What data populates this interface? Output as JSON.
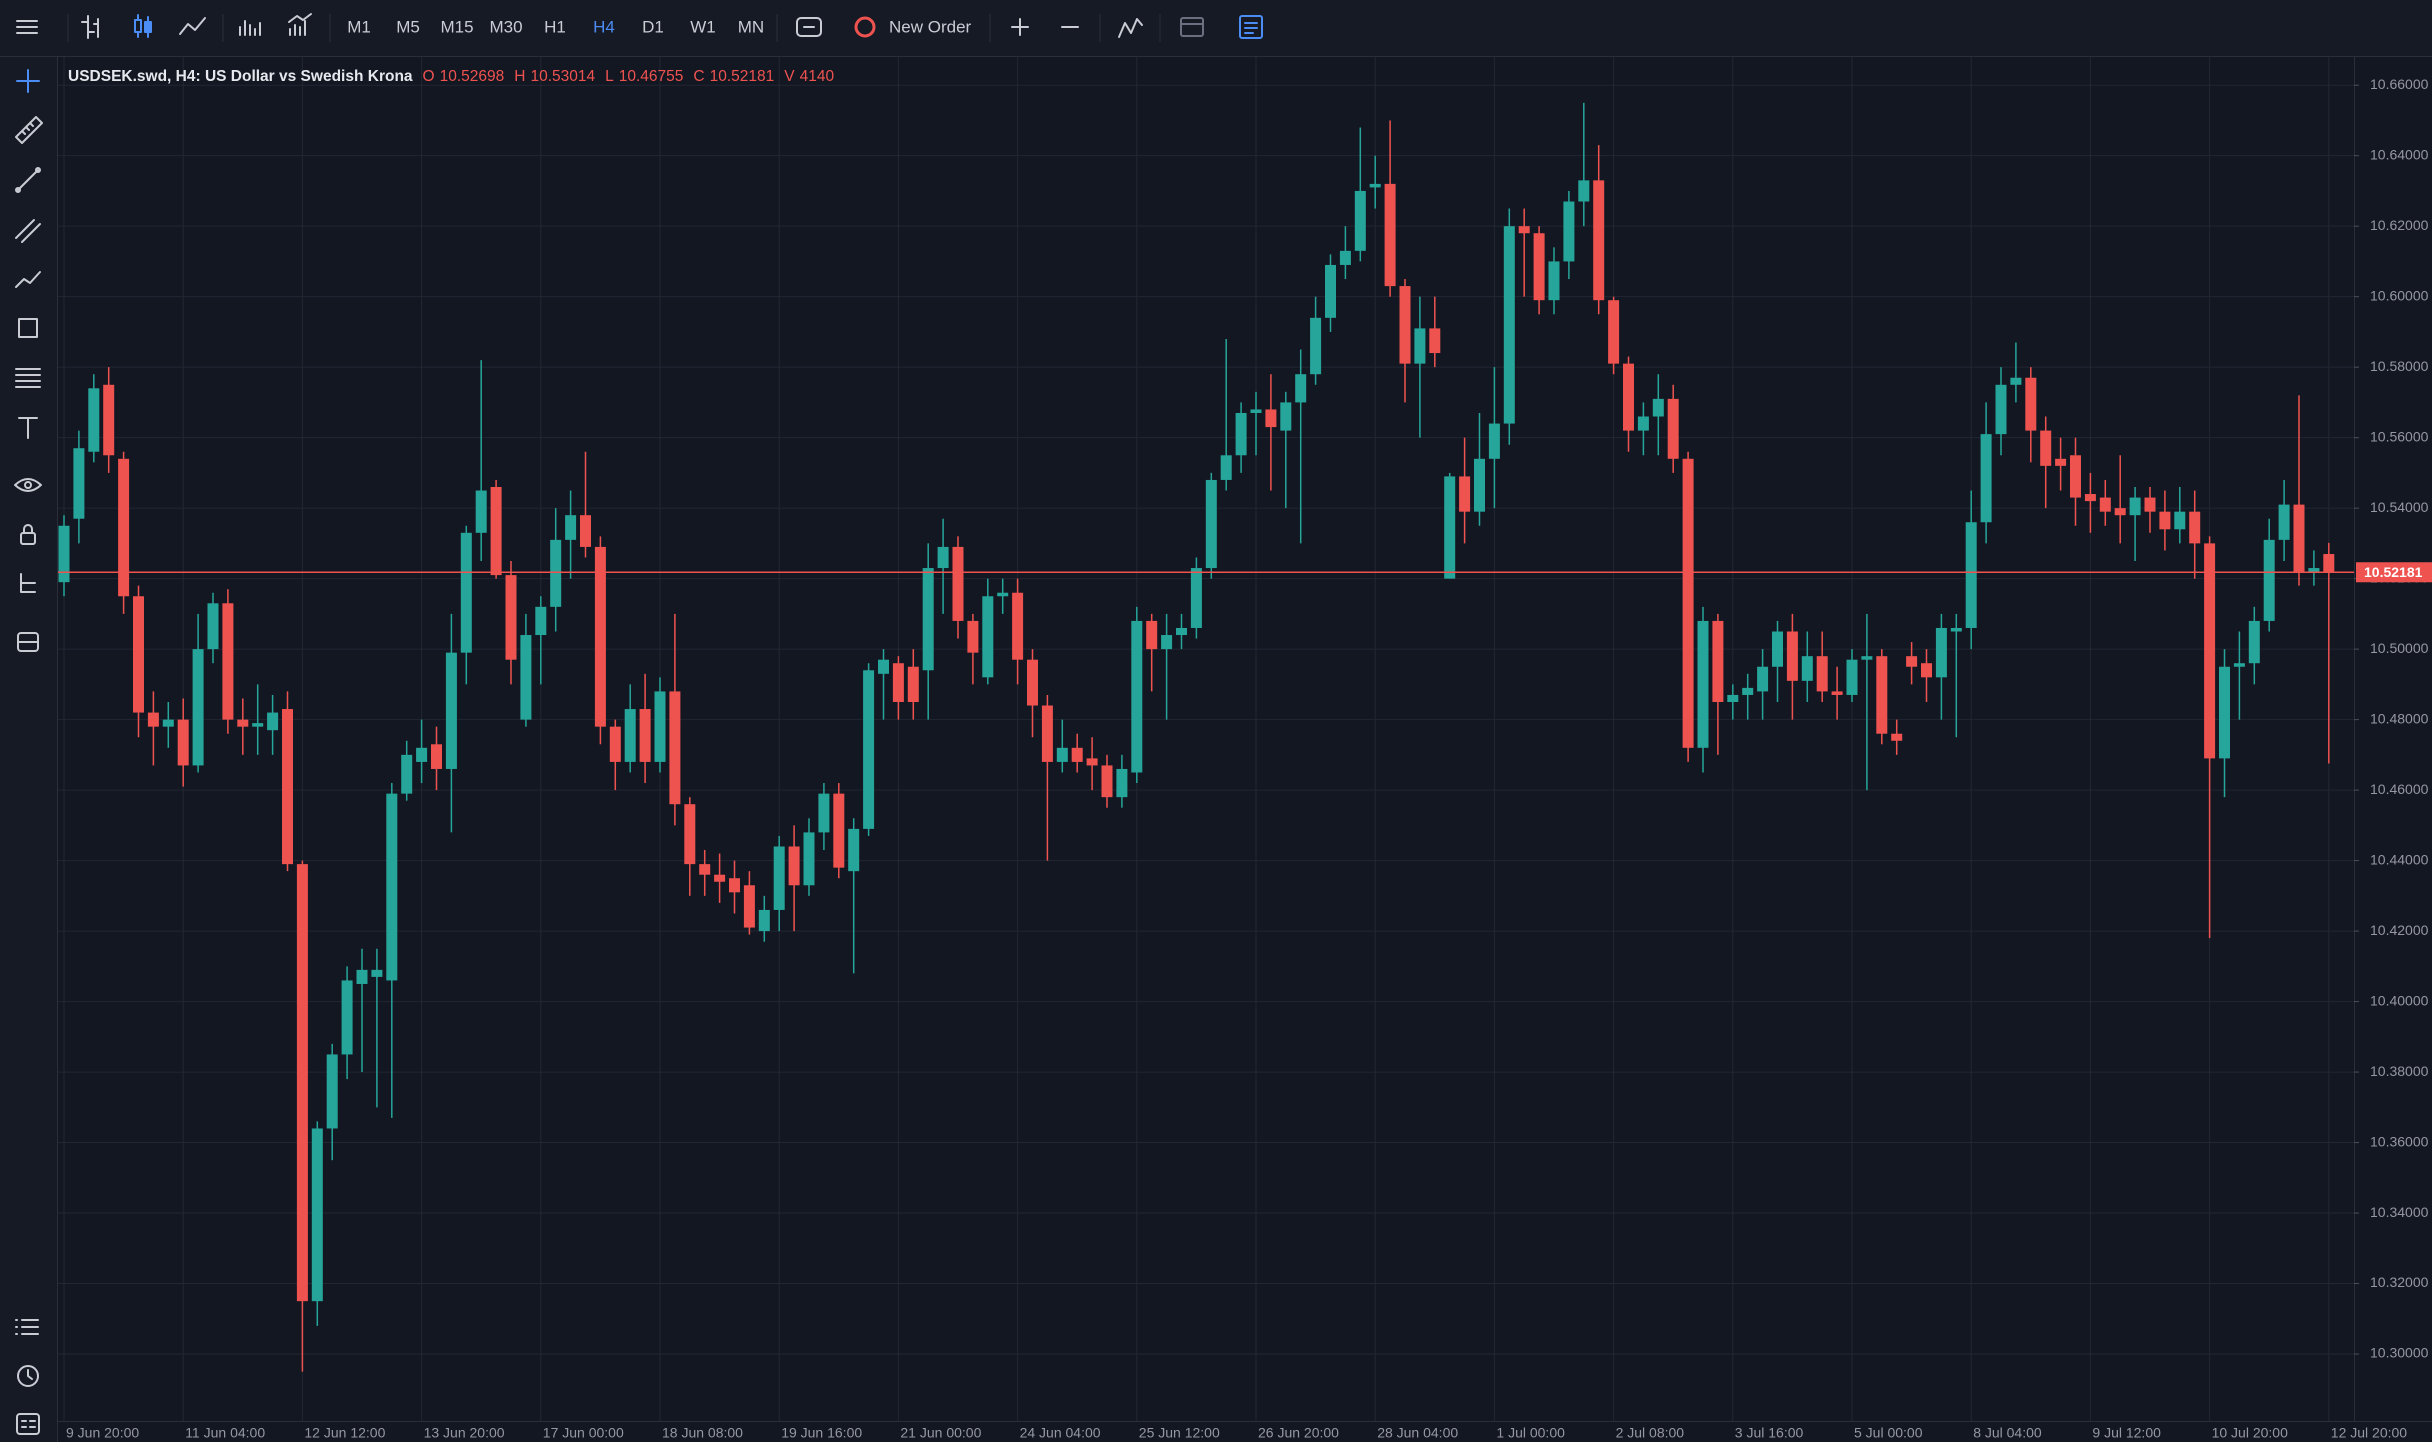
{
  "toolbar": {
    "timeframes": [
      "M1",
      "M5",
      "M15",
      "M30",
      "H1",
      "H4",
      "D1",
      "W1",
      "MN"
    ],
    "active_timeframe": "H4",
    "new_order": "New Order"
  },
  "chart_data": {
    "type": "candlestick",
    "title": "USDSEK.swd, H4: US Dollar vs Swedish Krona",
    "legend": [
      {
        "label": "O",
        "value": 10.52698
      },
      {
        "label": "H",
        "value": 10.53014
      },
      {
        "label": "L",
        "value": 10.46755
      },
      {
        "label": "C",
        "value": 10.52181
      },
      {
        "label": "V",
        "value": 4140
      }
    ],
    "last_price": 10.52181,
    "up_color": "#26a69a",
    "down_color": "#ef5350",
    "grid": true,
    "ylim": [
      10.281,
      10.668
    ],
    "yticks": [
      {
        "value": 10.3,
        "label": "10.30000"
      },
      {
        "value": 10.32,
        "label": "10.32000"
      },
      {
        "value": 10.34,
        "label": "10.34000"
      },
      {
        "value": 10.36,
        "label": "10.36000"
      },
      {
        "value": 10.38,
        "label": "10.38000"
      },
      {
        "value": 10.4,
        "label": "10.40000"
      },
      {
        "value": 10.42,
        "label": "10.42000"
      },
      {
        "value": 10.44,
        "label": "10.44000"
      },
      {
        "value": 10.46,
        "label": "10.46000"
      },
      {
        "value": 10.48,
        "label": "10.48000"
      },
      {
        "value": 10.5,
        "label": "10.50000"
      },
      {
        "value": 10.52,
        "label": "10.52000"
      },
      {
        "value": 10.54,
        "label": "10.54000"
      },
      {
        "value": 10.56,
        "label": "10.56000"
      },
      {
        "value": 10.58,
        "label": "10.58000"
      },
      {
        "value": 10.6,
        "label": "10.60000"
      },
      {
        "value": 10.62,
        "label": "10.62000"
      },
      {
        "value": 10.64,
        "label": "10.64000"
      },
      {
        "value": 10.66,
        "label": "10.66000"
      }
    ],
    "categories": [
      "9 Jun 20:00",
      null,
      null,
      null,
      null,
      null,
      null,
      null,
      "11 Jun 04:00",
      null,
      null,
      null,
      null,
      null,
      null,
      null,
      "12 Jun 12:00",
      null,
      null,
      null,
      null,
      null,
      null,
      null,
      "13 Jun 20:00",
      null,
      null,
      null,
      null,
      null,
      null,
      null,
      "17 Jun 00:00",
      null,
      null,
      null,
      null,
      null,
      null,
      null,
      "18 Jun 08:00",
      null,
      null,
      null,
      null,
      null,
      null,
      null,
      "19 Jun 16:00",
      null,
      null,
      null,
      null,
      null,
      null,
      null,
      "21 Jun 00:00",
      null,
      null,
      null,
      null,
      null,
      null,
      null,
      "24 Jun 04:00",
      null,
      null,
      null,
      null,
      null,
      null,
      null,
      "25 Jun 12:00",
      null,
      null,
      null,
      null,
      null,
      null,
      null,
      "26 Jun 20:00",
      null,
      null,
      null,
      null,
      null,
      null,
      null,
      "28 Jun 04:00",
      null,
      null,
      null,
      null,
      null,
      null,
      null,
      "1 Jul 00:00",
      null,
      null,
      null,
      null,
      null,
      null,
      null,
      "2 Jul 08:00",
      null,
      null,
      null,
      null,
      null,
      null,
      null,
      "3 Jul 16:00",
      null,
      null,
      null,
      null,
      null,
      null,
      null,
      "5 Jul 00:00",
      null,
      null,
      null,
      null,
      null,
      null,
      null,
      "8 Jul 04:00",
      null,
      null,
      null,
      null,
      null,
      null,
      null,
      "9 Jul 12:00",
      null,
      null,
      null,
      null,
      null,
      null,
      null,
      "10 Jul 20:00",
      null,
      null,
      null,
      null,
      null,
      null,
      null,
      "12 Jul 20:00"
    ],
    "open": [
      10.519,
      10.537,
      10.556,
      10.575,
      10.554,
      10.515,
      10.482,
      10.478,
      10.48,
      10.467,
      10.5,
      10.513,
      10.48,
      10.478,
      10.477,
      10.483,
      10.439,
      10.315,
      10.364,
      10.385,
      10.405,
      10.407,
      10.406,
      10.459,
      10.468,
      10.473,
      10.466,
      10.499,
      10.533,
      10.546,
      10.521,
      10.48,
      10.504,
      10.512,
      10.531,
      10.538,
      10.529,
      10.478,
      10.468,
      10.483,
      10.468,
      10.488,
      10.456,
      10.439,
      10.436,
      10.435,
      10.433,
      10.42,
      10.426,
      10.444,
      10.433,
      10.448,
      10.459,
      10.437,
      10.449,
      10.493,
      10.496,
      10.495,
      10.494,
      10.523,
      10.529,
      10.508,
      10.492,
      10.515,
      10.516,
      10.497,
      10.484,
      10.468,
      10.472,
      10.469,
      10.467,
      10.458,
      10.465,
      10.508,
      10.5,
      10.504,
      10.506,
      10.523,
      10.548,
      10.555,
      10.567,
      10.568,
      10.562,
      10.57,
      10.578,
      10.594,
      10.609,
      10.613,
      10.631,
      10.632,
      10.603,
      10.581,
      10.591,
      10.52,
      10.549,
      10.539,
      10.554,
      10.564,
      10.62,
      10.618,
      10.599,
      10.61,
      10.627,
      10.633,
      10.599,
      10.581,
      10.562,
      10.566,
      10.571,
      10.554,
      10.472,
      10.508,
      10.485,
      10.487,
      10.488,
      10.495,
      10.505,
      10.491,
      10.498,
      10.488,
      10.487,
      10.497,
      10.498,
      10.476,
      10.498,
      10.496,
      10.492,
      10.505,
      10.506,
      10.536,
      10.561,
      10.575,
      10.577,
      10.562,
      10.554,
      10.555,
      10.544,
      10.543,
      10.54,
      10.538,
      10.543,
      10.539,
      10.534,
      10.539,
      10.53,
      10.469,
      10.495,
      10.496,
      10.508,
      10.531,
      10.541,
      10.522,
      10.52698
    ],
    "high": [
      10.538,
      10.562,
      10.578,
      10.58,
      10.556,
      10.518,
      10.488,
      10.485,
      10.486,
      10.51,
      10.516,
      10.517,
      10.486,
      10.49,
      10.487,
      10.488,
      10.44,
      10.366,
      10.388,
      10.41,
      10.415,
      10.415,
      10.462,
      10.474,
      10.48,
      10.478,
      10.51,
      10.535,
      10.582,
      10.548,
      10.525,
      10.51,
      10.515,
      10.54,
      10.545,
      10.556,
      10.532,
      10.48,
      10.49,
      10.493,
      10.492,
      10.51,
      10.458,
      10.443,
      10.442,
      10.44,
      10.437,
      10.43,
      10.447,
      10.45,
      10.452,
      10.462,
      10.462,
      10.452,
      10.496,
      10.5,
      10.498,
      10.5,
      10.53,
      10.537,
      10.532,
      10.51,
      10.52,
      10.52,
      10.52,
      10.5,
      10.487,
      10.48,
      10.476,
      10.475,
      10.47,
      10.47,
      10.512,
      10.51,
      10.51,
      10.51,
      10.526,
      10.55,
      10.588,
      10.57,
      10.573,
      10.578,
      10.573,
      10.585,
      10.6,
      10.612,
      10.62,
      10.648,
      10.64,
      10.65,
      10.605,
      10.6,
      10.6,
      10.55,
      10.56,
      10.567,
      10.58,
      10.625,
      10.625,
      10.62,
      10.614,
      10.63,
      10.655,
      10.643,
      10.6,
      10.583,
      10.57,
      10.578,
      10.575,
      10.556,
      10.512,
      10.51,
      10.49,
      10.493,
      10.5,
      10.508,
      10.51,
      10.505,
      10.505,
      10.495,
      10.5,
      10.51,
      10.5,
      10.48,
      10.502,
      10.5,
      10.51,
      10.51,
      10.545,
      10.57,
      10.58,
      10.587,
      10.58,
      10.566,
      10.56,
      10.56,
      10.55,
      10.548,
      10.555,
      10.546,
      10.546,
      10.545,
      10.546,
      10.545,
      10.532,
      10.5,
      10.505,
      10.512,
      10.537,
      10.548,
      10.572,
      10.528,
      10.53014
    ],
    "low": [
      10.515,
      10.53,
      10.553,
      10.55,
      10.51,
      10.475,
      10.467,
      10.472,
      10.461,
      10.465,
      10.496,
      10.476,
      10.47,
      10.47,
      10.47,
      10.437,
      10.295,
      10.308,
      10.355,
      10.378,
      10.38,
      10.37,
      10.367,
      10.457,
      10.462,
      10.46,
      10.448,
      10.49,
      10.525,
      10.52,
      10.49,
      10.478,
      10.49,
      10.505,
      10.52,
      10.526,
      10.473,
      10.46,
      10.465,
      10.462,
      10.465,
      10.45,
      10.43,
      10.43,
      10.428,
      10.425,
      10.419,
      10.417,
      10.42,
      10.42,
      10.43,
      10.443,
      10.435,
      10.408,
      10.447,
      10.48,
      10.48,
      10.48,
      10.48,
      10.51,
      10.503,
      10.49,
      10.49,
      10.51,
      10.49,
      10.475,
      10.44,
      10.465,
      10.465,
      10.46,
      10.455,
      10.455,
      10.462,
      10.488,
      10.48,
      10.5,
      10.503,
      10.52,
      10.545,
      10.55,
      10.555,
      10.545,
      10.54,
      10.53,
      10.575,
      10.59,
      10.605,
      10.61,
      10.625,
      10.6,
      10.57,
      10.56,
      10.58,
      10.52,
      10.53,
      10.535,
      10.54,
      10.558,
      10.6,
      10.595,
      10.595,
      10.605,
      10.62,
      10.595,
      10.578,
      10.556,
      10.555,
      10.555,
      10.55,
      10.468,
      10.465,
      10.47,
      10.48,
      10.48,
      10.48,
      10.485,
      10.48,
      10.485,
      10.485,
      10.48,
      10.485,
      10.46,
      10.473,
      10.47,
      10.49,
      10.485,
      10.48,
      10.475,
      10.5,
      10.53,
      10.555,
      10.57,
      10.553,
      10.54,
      10.545,
      10.535,
      10.533,
      10.535,
      10.53,
      10.525,
      10.533,
      10.528,
      10.53,
      10.52,
      10.418,
      10.458,
      10.48,
      10.49,
      10.505,
      10.525,
      10.518,
      10.518,
      10.46755
    ],
    "close": [
      10.535,
      10.557,
      10.574,
      10.555,
      10.515,
      10.482,
      10.478,
      10.48,
      10.467,
      10.5,
      10.513,
      10.48,
      10.478,
      10.479,
      10.482,
      10.439,
      10.315,
      10.364,
      10.385,
      10.406,
      10.409,
      10.409,
      10.459,
      10.47,
      10.472,
      10.466,
      10.499,
      10.533,
      10.545,
      10.521,
      10.497,
      10.504,
      10.512,
      10.531,
      10.538,
      10.529,
      10.478,
      10.468,
      10.483,
      10.468,
      10.488,
      10.456,
      10.439,
      10.436,
      10.434,
      10.431,
      10.421,
      10.426,
      10.444,
      10.433,
      10.448,
      10.459,
      10.438,
      10.449,
      10.494,
      10.497,
      10.485,
      10.485,
      10.523,
      10.529,
      10.508,
      10.499,
      10.515,
      10.516,
      10.497,
      10.484,
      10.468,
      10.472,
      10.468,
      10.467,
      10.458,
      10.466,
      10.508,
      10.5,
      10.504,
      10.506,
      10.523,
      10.548,
      10.555,
      10.567,
      10.568,
      10.563,
      10.57,
      10.578,
      10.594,
      10.609,
      10.613,
      10.63,
      10.632,
      10.603,
      10.581,
      10.591,
      10.584,
      10.549,
      10.539,
      10.554,
      10.564,
      10.62,
      10.618,
      10.599,
      10.61,
      10.627,
      10.633,
      10.599,
      10.581,
      10.562,
      10.566,
      10.571,
      10.554,
      10.472,
      10.508,
      10.485,
      10.487,
      10.489,
      10.495,
      10.505,
      10.491,
      10.498,
      10.488,
      10.487,
      10.497,
      10.498,
      10.476,
      10.474,
      10.495,
      10.492,
      10.506,
      10.506,
      10.536,
      10.561,
      10.575,
      10.577,
      10.562,
      10.552,
      10.552,
      10.543,
      10.542,
      10.539,
      10.538,
      10.543,
      10.539,
      10.534,
      10.539,
      10.53,
      10.469,
      10.495,
      10.496,
      10.508,
      10.531,
      10.541,
      10.522,
      10.523,
      10.52181
    ]
  }
}
